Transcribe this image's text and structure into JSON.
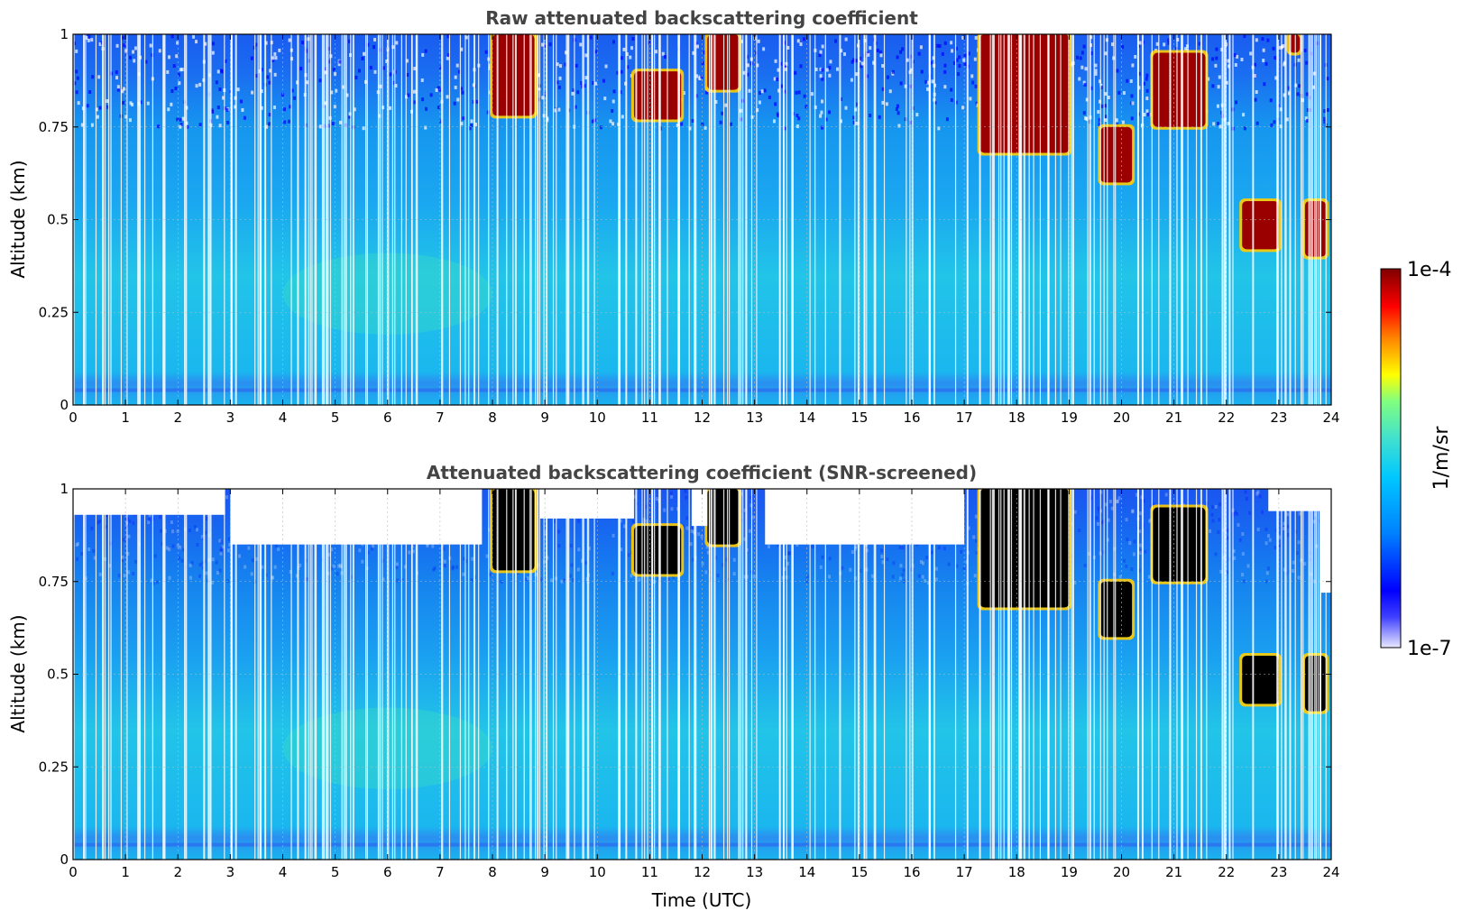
{
  "chart_data": [
    {
      "type": "heatmap",
      "title": "Raw attenuated backscattering coefficient",
      "xlabel": "",
      "ylabel": "Altitude (km)",
      "xlim": [
        0,
        24
      ],
      "ylim": [
        0,
        1
      ],
      "x_ticks": [
        "0",
        "1",
        "2",
        "3",
        "4",
        "5",
        "6",
        "7",
        "8",
        "9",
        "10",
        "11",
        "12",
        "13",
        "14",
        "15",
        "16",
        "17",
        "18",
        "19",
        "20",
        "21",
        "22",
        "23",
        "24"
      ],
      "y_ticks": [
        "0",
        "0.25",
        "0.5",
        "0.75",
        "1"
      ],
      "grid": true,
      "clouds": [
        {
          "t_start": 8.0,
          "t_end": 8.8,
          "alt_bottom": 0.78,
          "alt_top": 1.0
        },
        {
          "t_start": 10.7,
          "t_end": 11.6,
          "alt_bottom": 0.77,
          "alt_top": 0.9
        },
        {
          "t_start": 12.1,
          "t_end": 12.7,
          "alt_bottom": 0.85,
          "alt_top": 1.0
        },
        {
          "t_start": 17.3,
          "t_end": 19.0,
          "alt_bottom": 0.68,
          "alt_top": 1.0
        },
        {
          "t_start": 19.6,
          "t_end": 20.2,
          "alt_bottom": 0.6,
          "alt_top": 0.75
        },
        {
          "t_start": 20.6,
          "t_end": 21.6,
          "alt_bottom": 0.75,
          "alt_top": 0.95
        },
        {
          "t_start": 22.3,
          "t_end": 23.0,
          "alt_bottom": 0.42,
          "alt_top": 0.55
        },
        {
          "t_start": 23.2,
          "t_end": 23.4,
          "alt_bottom": 0.95,
          "alt_top": 1.0
        },
        {
          "t_start": 23.5,
          "t_end": 23.9,
          "alt_bottom": 0.4,
          "alt_top": 0.55
        }
      ]
    },
    {
      "type": "heatmap",
      "title": "Attenuated backscattering coefficient (SNR-screened)",
      "xlabel": "Time (UTC)",
      "ylabel": "Altitude (km)",
      "xlim": [
        0,
        24
      ],
      "ylim": [
        0,
        1
      ],
      "x_ticks": [
        "0",
        "1",
        "2",
        "3",
        "4",
        "5",
        "6",
        "7",
        "8",
        "9",
        "10",
        "11",
        "12",
        "13",
        "14",
        "15",
        "16",
        "17",
        "18",
        "19",
        "20",
        "21",
        "22",
        "23",
        "24"
      ],
      "y_ticks": [
        "0",
        "0.25",
        "0.5",
        "0.75",
        "1"
      ],
      "grid": true,
      "screened_cloud_color": "#000000"
    }
  ],
  "colorbar": {
    "label": "1/m/sr",
    "max_label": "1e-4",
    "min_label": "1e-7",
    "scale": "log",
    "range": [
      1e-07,
      0.0001
    ],
    "colormap": [
      "#e8e8ff",
      "#0000ff",
      "#0080ff",
      "#00c8ff",
      "#40e0d0",
      "#80ff80",
      "#ffff00",
      "#ff8000",
      "#ff0000",
      "#800000"
    ]
  }
}
